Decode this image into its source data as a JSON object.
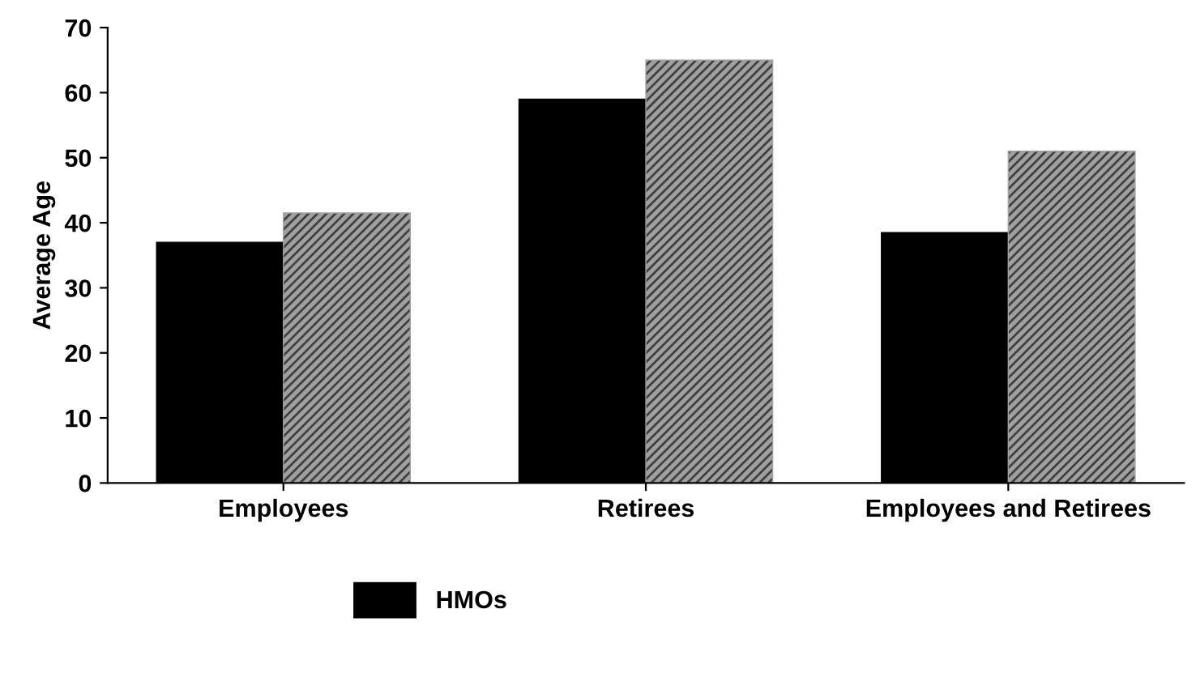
{
  "chart_data": {
    "type": "bar",
    "ylabel": "Average Age",
    "categories": [
      "Employees",
      "Retirees",
      "Employees and Retirees"
    ],
    "series": [
      {
        "name": "HMOs",
        "color": "#000000",
        "values": [
          37,
          59,
          38.5
        ]
      },
      {
        "color": "#a0a0a0",
        "values": [
          41.5,
          65,
          51
        ]
      }
    ],
    "ylim": [
      0,
      70
    ],
    "yticks": [
      0,
      10,
      20,
      30,
      40,
      50,
      60,
      70
    ],
    "grid": false,
    "legend": "bottom"
  }
}
